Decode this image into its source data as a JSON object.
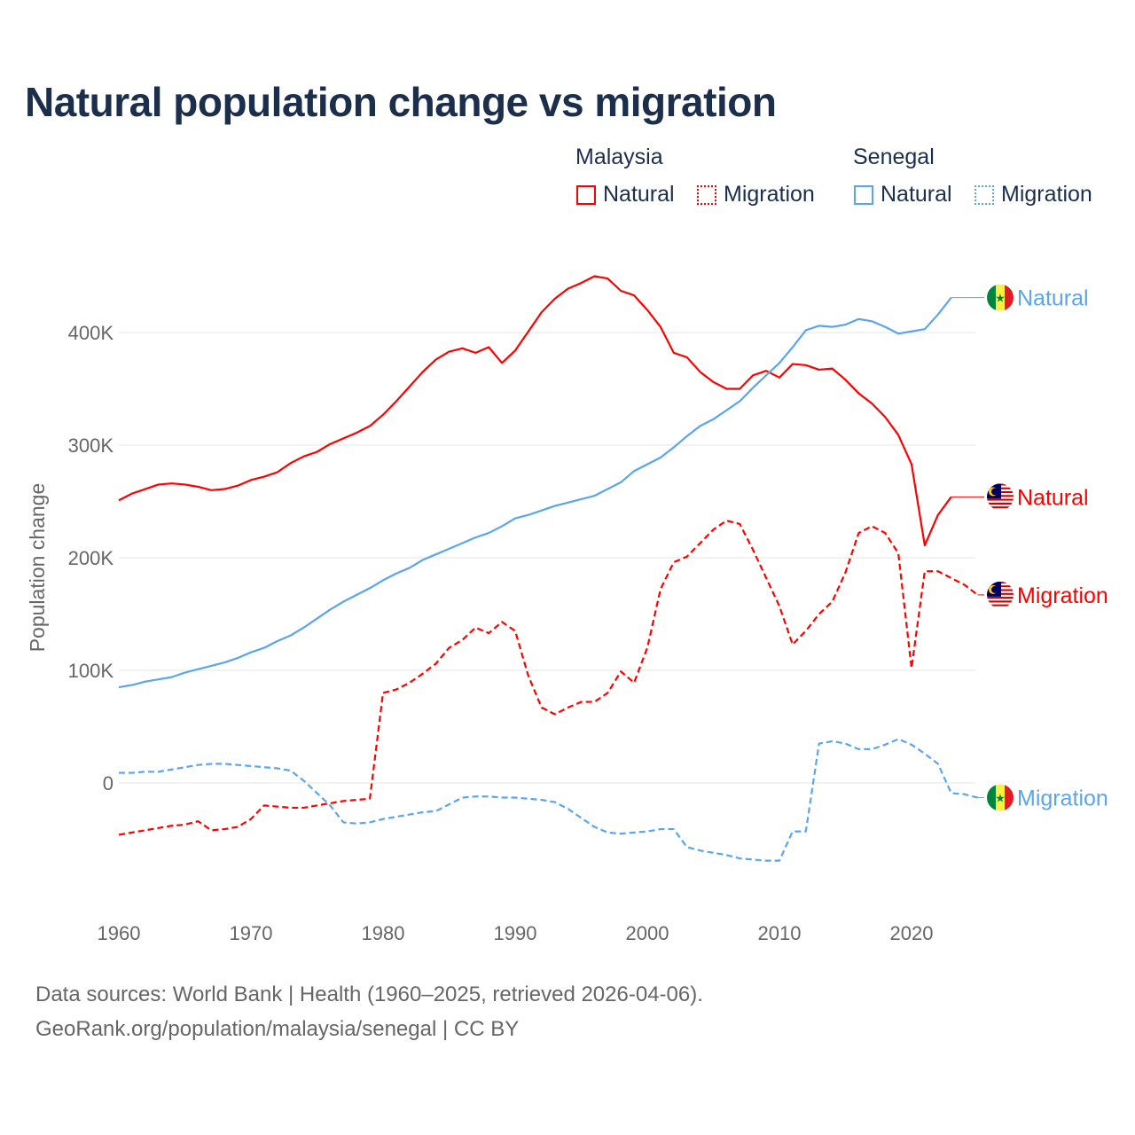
{
  "title": "Natural population change vs migration",
  "legend": {
    "groups": [
      {
        "name": "Malaysia",
        "color": "#ff0000",
        "items": [
          "Natural",
          "Migration"
        ]
      },
      {
        "name": "Senegal",
        "color": "#5aa5ee",
        "items": [
          "Natural",
          "Migration"
        ]
      }
    ]
  },
  "footer": {
    "line1": "Data sources: World Bank | Health (1960–2025, retrieved 2026-04-06).",
    "line2": "GeoRank.org/population/malaysia/senegal | CC BY"
  },
  "chart_data": {
    "type": "line",
    "title": "Natural population change vs migration",
    "xlabel": "",
    "ylabel": "Population change",
    "xlim": [
      1960,
      2025
    ],
    "ylim": [
      -100000,
      450000
    ],
    "x_ticks": [
      "1960",
      "1970",
      "1980",
      "1990",
      "2000",
      "2010",
      "2020"
    ],
    "y_ticks": [
      {
        "value": 0,
        "label": "0"
      },
      {
        "value": 100000,
        "label": "100K"
      },
      {
        "value": 200000,
        "label": "200K"
      },
      {
        "value": 300000,
        "label": "300K"
      },
      {
        "value": 400000,
        "label": "400K"
      }
    ],
    "grid": true,
    "legend_position": "top-right",
    "series": [
      {
        "name": "Malaysia Natural",
        "end_label": "Natural",
        "country": "Malaysia",
        "color": "#ff0000",
        "dashed": false,
        "start_year": 1960,
        "values_k": [
          251,
          257,
          261,
          265,
          266,
          265,
          263,
          260,
          261,
          264,
          269,
          272,
          276,
          284,
          290,
          294,
          301,
          306,
          311,
          317,
          327,
          339,
          352,
          365,
          376,
          383,
          386,
          382,
          387,
          373,
          384,
          401,
          418,
          430,
          439,
          444,
          450,
          448,
          437,
          433,
          420,
          405,
          382,
          378,
          365,
          356,
          350,
          350,
          362,
          366,
          360,
          372,
          371,
          367,
          368,
          358,
          346,
          337,
          325,
          309,
          283,
          211,
          238,
          254
        ]
      },
      {
        "name": "Malaysia Migration",
        "end_label": "Migration",
        "country": "Malaysia",
        "color": "#ff0000",
        "dashed": true,
        "start_year": 1960,
        "values_k": [
          -46,
          -44,
          -42,
          -40,
          -38,
          -37,
          -34,
          -42,
          -41,
          -39,
          -32,
          -20,
          -21,
          -22,
          -22,
          -20,
          -18,
          -16,
          -15,
          -14,
          80,
          83,
          89,
          97,
          106,
          120,
          127,
          138,
          133,
          143,
          135,
          95,
          67,
          61,
          67,
          72,
          72,
          80,
          99,
          89,
          120,
          172,
          196,
          201,
          213,
          225,
          233,
          230,
          207,
          182,
          157,
          123,
          135,
          150,
          161,
          187,
          222,
          228,
          222,
          204,
          102,
          188,
          188,
          182,
          176,
          167
        ]
      },
      {
        "name": "Senegal Natural",
        "end_label": "Natural",
        "country": "Senegal",
        "color": "#5aa5ee",
        "dashed": false,
        "start_year": 1960,
        "values_k": [
          85,
          87,
          90,
          92,
          94,
          98,
          101,
          104,
          107,
          111,
          116,
          120,
          126,
          131,
          138,
          146,
          154,
          161,
          167,
          173,
          180,
          186,
          191,
          198,
          203,
          208,
          213,
          218,
          222,
          228,
          235,
          238,
          242,
          246,
          249,
          252,
          255,
          261,
          267,
          277,
          283,
          289,
          298,
          308,
          317,
          323,
          331,
          339,
          351,
          362,
          373,
          387,
          402,
          406,
          405,
          407,
          412,
          410,
          405,
          399,
          401,
          403,
          416,
          431
        ]
      },
      {
        "name": "Senegal Migration",
        "end_label": "Migration",
        "country": "Senegal",
        "color": "#5aa5ee",
        "dashed": true,
        "start_year": 1960,
        "values_k": [
          9,
          9,
          10,
          10,
          12,
          14,
          16,
          17,
          17,
          16,
          15,
          14,
          13,
          11,
          2,
          -9,
          -20,
          -35,
          -36,
          -35,
          -32,
          -30,
          -28,
          -26,
          -25,
          -19,
          -13,
          -12,
          -12,
          -13,
          -13,
          -14,
          -15,
          -17,
          -23,
          -31,
          -39,
          -44,
          -45,
          -44,
          -43,
          -41,
          -41,
          -57,
          -60,
          -62,
          -64,
          -67,
          -68,
          -69,
          -69,
          -43,
          -43,
          35,
          37,
          35,
          30,
          30,
          34,
          39,
          34,
          26,
          17,
          -9,
          -10,
          -13
        ]
      }
    ]
  }
}
